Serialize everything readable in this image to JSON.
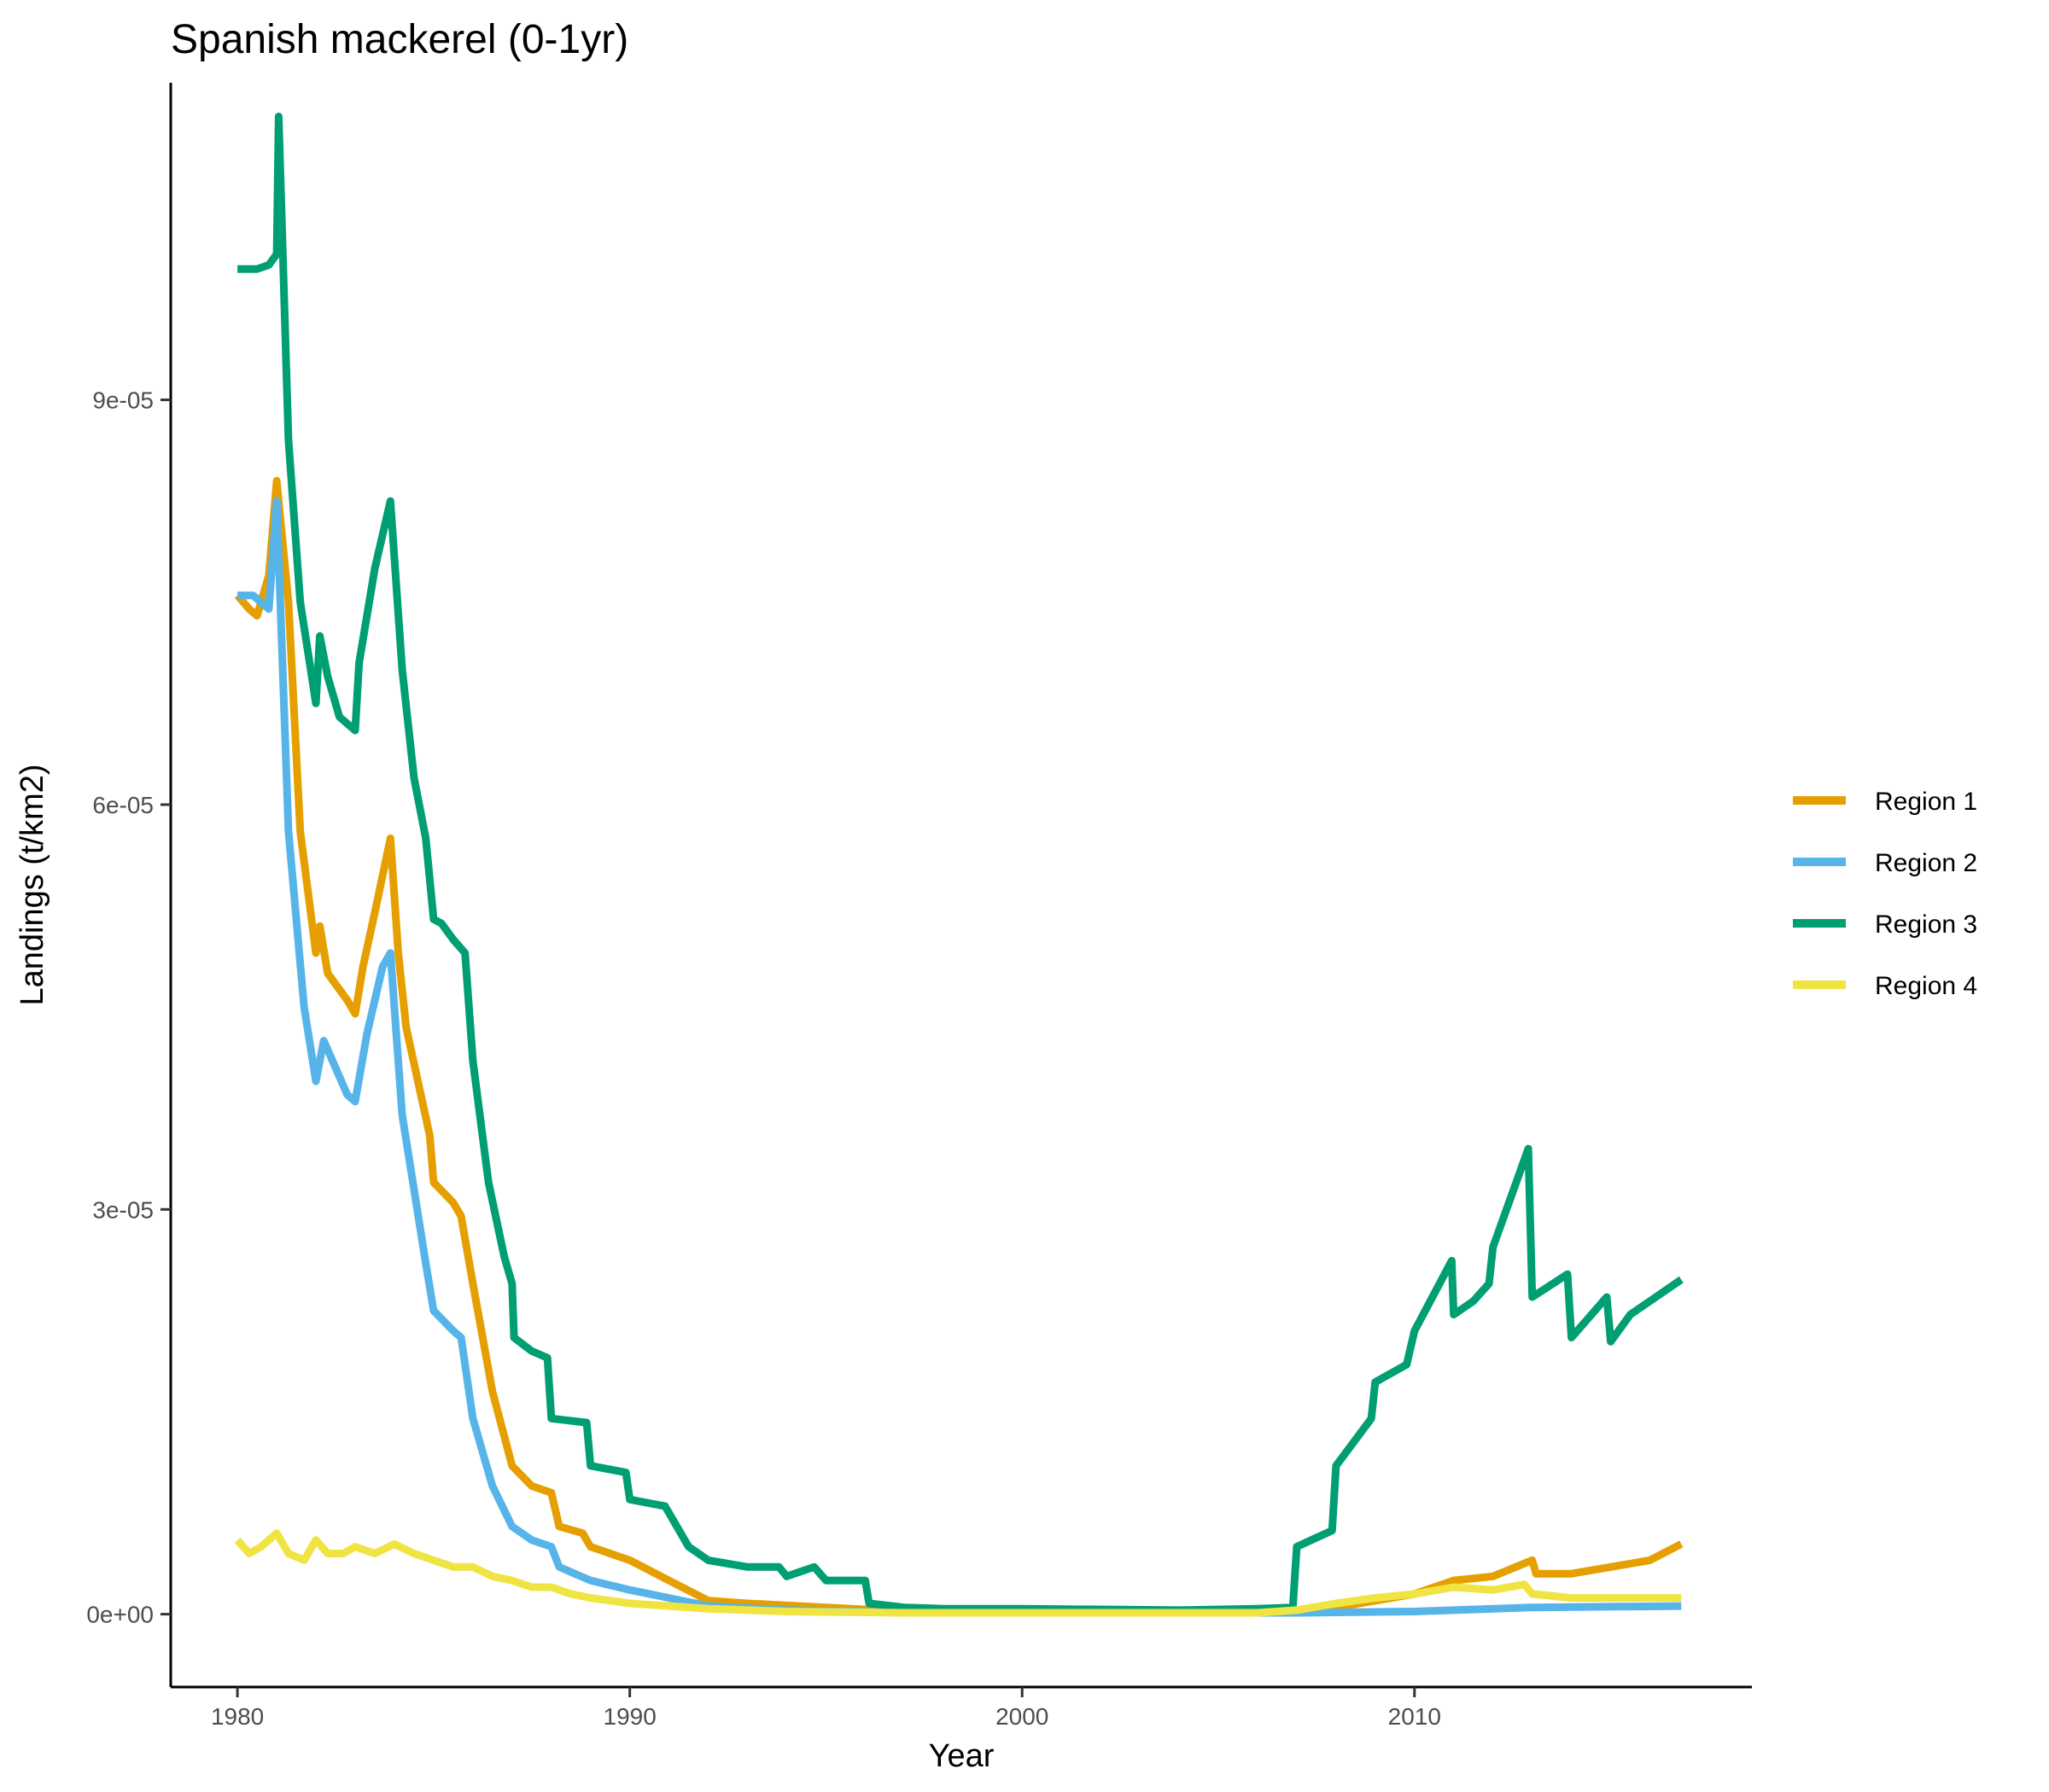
{
  "chart_data": {
    "type": "line",
    "title": "Spanish mackerel (0-1yr)",
    "xlabel": "Year",
    "ylabel": "Landings (t/km2)",
    "xlim": [
      1978.3,
      2018.6
    ],
    "ylim": [
      -5.4e-06,
      0.0001135
    ],
    "x_ticks": [
      1980,
      1990,
      2000,
      2010
    ],
    "x_tick_labels": [
      "1980",
      "1990",
      "2000",
      "2010"
    ],
    "y_ticks": [
      0,
      3e-05,
      6e-05,
      9e-05
    ],
    "y_tick_labels": [
      "0e+00",
      "3e-05",
      "6e-05",
      "9e-05"
    ],
    "grid": false,
    "legend_position": "right",
    "series": [
      {
        "name": "Region 1",
        "color": "#E69F00",
        "points": [
          [
            1980.0,
            7.55e-05
          ],
          [
            1980.3,
            7.45e-05
          ],
          [
            1980.5,
            7.4e-05
          ],
          [
            1980.8,
            7.7e-05
          ],
          [
            1981.0,
            8.4e-05
          ],
          [
            1981.3,
            7.5e-05
          ],
          [
            1981.6,
            5.8e-05
          ],
          [
            1982.0,
            4.9e-05
          ],
          [
            1982.1,
            5.1e-05
          ],
          [
            1982.3,
            4.75e-05
          ],
          [
            1982.8,
            4.55e-05
          ],
          [
            1983.0,
            4.45e-05
          ],
          [
            1983.2,
            4.8e-05
          ],
          [
            1983.5,
            5.2e-05
          ],
          [
            1983.9,
            5.75e-05
          ],
          [
            1984.1,
            4.9e-05
          ],
          [
            1984.3,
            4.35e-05
          ],
          [
            1984.6,
            3.95e-05
          ],
          [
            1984.9,
            3.55e-05
          ],
          [
            1985.0,
            3.2e-05
          ],
          [
            1985.5,
            3.05e-05
          ],
          [
            1985.7,
            2.95e-05
          ],
          [
            1986.0,
            2.45e-05
          ],
          [
            1986.5,
            1.65e-05
          ],
          [
            1987.0,
            1.1e-05
          ],
          [
            1987.5,
            9.5e-06
          ],
          [
            1988.0,
            9e-06
          ],
          [
            1988.2,
            6.5e-06
          ],
          [
            1988.8,
            6e-06
          ],
          [
            1989.0,
            5e-06
          ],
          [
            1990.0,
            4e-06
          ],
          [
            1991.0,
            2.5e-06
          ],
          [
            1992.0,
            1e-06
          ],
          [
            1993.0,
            8e-07
          ],
          [
            1995.0,
            5e-07
          ],
          [
            1997.0,
            2e-07
          ],
          [
            2000.0,
            1e-07
          ],
          [
            2003.0,
            1e-07
          ],
          [
            2006.0,
            1e-07
          ],
          [
            2007.0,
            2e-07
          ],
          [
            2008.0,
            5e-07
          ],
          [
            2009.0,
            1e-06
          ],
          [
            2010.0,
            1.5e-06
          ],
          [
            2011.0,
            2.5e-06
          ],
          [
            2012.0,
            2.8e-06
          ],
          [
            2013.0,
            4e-06
          ],
          [
            2013.1,
            3e-06
          ],
          [
            2014.0,
            3e-06
          ],
          [
            2015.0,
            3.5e-06
          ],
          [
            2016.0,
            4e-06
          ],
          [
            2016.8,
            5.2e-06
          ]
        ]
      },
      {
        "name": "Region 2",
        "color": "#56B4E9",
        "points": [
          [
            1980.0,
            7.55e-05
          ],
          [
            1980.4,
            7.55e-05
          ],
          [
            1980.8,
            7.45e-05
          ],
          [
            1981.0,
            8.25e-05
          ],
          [
            1981.3,
            5.8e-05
          ],
          [
            1981.7,
            4.5e-05
          ],
          [
            1982.0,
            3.95e-05
          ],
          [
            1982.2,
            4.25e-05
          ],
          [
            1982.8,
            3.85e-05
          ],
          [
            1983.0,
            3.8e-05
          ],
          [
            1983.3,
            4.3e-05
          ],
          [
            1983.7,
            4.8e-05
          ],
          [
            1983.9,
            4.9e-05
          ],
          [
            1984.2,
            3.7e-05
          ],
          [
            1984.5,
            3.15e-05
          ],
          [
            1984.8,
            2.6e-05
          ],
          [
            1985.0,
            2.25e-05
          ],
          [
            1985.5,
            2.1e-05
          ],
          [
            1985.7,
            2.05e-05
          ],
          [
            1986.0,
            1.45e-05
          ],
          [
            1986.5,
            9.5e-06
          ],
          [
            1987.0,
            6.5e-06
          ],
          [
            1987.5,
            5.5e-06
          ],
          [
            1988.0,
            5e-06
          ],
          [
            1988.2,
            3.5e-06
          ],
          [
            1989.0,
            2.5e-06
          ],
          [
            1990.0,
            1.8e-06
          ],
          [
            1991.0,
            1.2e-06
          ],
          [
            1992.0,
            6e-07
          ],
          [
            1994.0,
            3e-07
          ],
          [
            1997.0,
            1e-07
          ],
          [
            2000.0,
            1e-07
          ],
          [
            2007.0,
            1e-07
          ],
          [
            2010.0,
            2e-07
          ],
          [
            2013.0,
            5e-07
          ],
          [
            2016.8,
            6e-07
          ]
        ]
      },
      {
        "name": "Region 3",
        "color": "#009E73",
        "points": [
          [
            1980.0,
            9.97e-05
          ],
          [
            1980.5,
            9.97e-05
          ],
          [
            1980.8,
            0.0001
          ],
          [
            1981.0,
            0.0001008
          ],
          [
            1981.05,
            0.000111
          ],
          [
            1981.3,
            8.7e-05
          ],
          [
            1981.6,
            7.5e-05
          ],
          [
            1982.0,
            6.75e-05
          ],
          [
            1982.1,
            7.25e-05
          ],
          [
            1982.3,
            6.95e-05
          ],
          [
            1982.6,
            6.65e-05
          ],
          [
            1983.0,
            6.55e-05
          ],
          [
            1983.1,
            7.05e-05
          ],
          [
            1983.5,
            7.75e-05
          ],
          [
            1983.9,
            8.25e-05
          ],
          [
            1984.2,
            7e-05
          ],
          [
            1984.5,
            6.2e-05
          ],
          [
            1984.8,
            5.75e-05
          ],
          [
            1985.0,
            5.15e-05
          ],
          [
            1985.2,
            5.12e-05
          ],
          [
            1985.5,
            5e-05
          ],
          [
            1985.8,
            4.9e-05
          ],
          [
            1986.0,
            4.1e-05
          ],
          [
            1986.4,
            3.2e-05
          ],
          [
            1986.8,
            2.65e-05
          ],
          [
            1987.0,
            2.45e-05
          ],
          [
            1987.05,
            2.05e-05
          ],
          [
            1987.5,
            1.95e-05
          ],
          [
            1987.9,
            1.9e-05
          ],
          [
            1988.0,
            1.45e-05
          ],
          [
            1988.9,
            1.42e-05
          ],
          [
            1989.0,
            1.1e-05
          ],
          [
            1989.9,
            1.05e-05
          ],
          [
            1990.0,
            8.5e-06
          ],
          [
            1990.9,
            8e-06
          ],
          [
            1991.0,
            7.5e-06
          ],
          [
            1991.5,
            5e-06
          ],
          [
            1992.0,
            4e-06
          ],
          [
            1993.0,
            3.5e-06
          ],
          [
            1993.8,
            3.5e-06
          ],
          [
            1994.0,
            2.8e-06
          ],
          [
            1994.7,
            3.5e-06
          ],
          [
            1995.0,
            2.5e-06
          ],
          [
            1996.0,
            2.5e-06
          ],
          [
            1996.1,
            8e-07
          ],
          [
            1997.0,
            5e-07
          ],
          [
            1998.0,
            4e-07
          ],
          [
            2000.0,
            4e-07
          ],
          [
            2004.0,
            3e-07
          ],
          [
            2006.0,
            4e-07
          ],
          [
            2006.9,
            5e-07
          ],
          [
            2007.0,
            5e-06
          ],
          [
            2007.9,
            6.2e-06
          ],
          [
            2008.0,
            1.1e-05
          ],
          [
            2008.9,
            1.45e-05
          ],
          [
            2009.0,
            1.72e-05
          ],
          [
            2009.8,
            1.85e-05
          ],
          [
            2010.0,
            2.1e-05
          ],
          [
            2010.95,
            2.62e-05
          ],
          [
            2011.0,
            2.22e-05
          ],
          [
            2011.5,
            2.32e-05
          ],
          [
            2011.9,
            2.45e-05
          ],
          [
            2012.0,
            2.72e-05
          ],
          [
            2012.9,
            3.45e-05
          ],
          [
            2013.0,
            2.35e-05
          ],
          [
            2013.9,
            2.52e-05
          ],
          [
            2014.0,
            2.05e-05
          ],
          [
            2014.9,
            2.35e-05
          ],
          [
            2015.0,
            2.02e-05
          ],
          [
            2015.5,
            2.22e-05
          ],
          [
            2016.0,
            2.32e-05
          ],
          [
            2016.8,
            2.48e-05
          ]
        ]
      },
      {
        "name": "Region 4",
        "color": "#F0E442",
        "points": [
          [
            1980.0,
            5.5e-06
          ],
          [
            1980.3,
            4.5e-06
          ],
          [
            1980.6,
            5e-06
          ],
          [
            1981.0,
            6e-06
          ],
          [
            1981.3,
            4.5e-06
          ],
          [
            1981.7,
            4e-06
          ],
          [
            1982.0,
            5.5e-06
          ],
          [
            1982.3,
            4.5e-06
          ],
          [
            1982.7,
            4.5e-06
          ],
          [
            1983.0,
            5e-06
          ],
          [
            1983.5,
            4.5e-06
          ],
          [
            1984.0,
            5.2e-06
          ],
          [
            1984.5,
            4.5e-06
          ],
          [
            1985.0,
            4e-06
          ],
          [
            1985.5,
            3.5e-06
          ],
          [
            1986.0,
            3.5e-06
          ],
          [
            1986.5,
            2.8e-06
          ],
          [
            1987.0,
            2.5e-06
          ],
          [
            1987.5,
            2e-06
          ],
          [
            1988.0,
            2e-06
          ],
          [
            1988.5,
            1.5e-06
          ],
          [
            1989.0,
            1.2e-06
          ],
          [
            1990.0,
            8e-07
          ],
          [
            1991.0,
            6e-07
          ],
          [
            1992.0,
            4e-07
          ],
          [
            1994.0,
            2e-07
          ],
          [
            1997.0,
            1e-07
          ],
          [
            2000.0,
            1e-07
          ],
          [
            2006.0,
            1e-07
          ],
          [
            2007.0,
            3e-07
          ],
          [
            2008.0,
            8e-07
          ],
          [
            2009.0,
            1.2e-06
          ],
          [
            2010.0,
            1.5e-06
          ],
          [
            2011.0,
            2e-06
          ],
          [
            2012.0,
            1.8e-06
          ],
          [
            2012.8,
            2.2e-06
          ],
          [
            2013.0,
            1.5e-06
          ],
          [
            2014.0,
            1.2e-06
          ],
          [
            2015.0,
            1.2e-06
          ],
          [
            2016.0,
            1.2e-06
          ],
          [
            2016.8,
            1.2e-06
          ]
        ]
      }
    ]
  }
}
